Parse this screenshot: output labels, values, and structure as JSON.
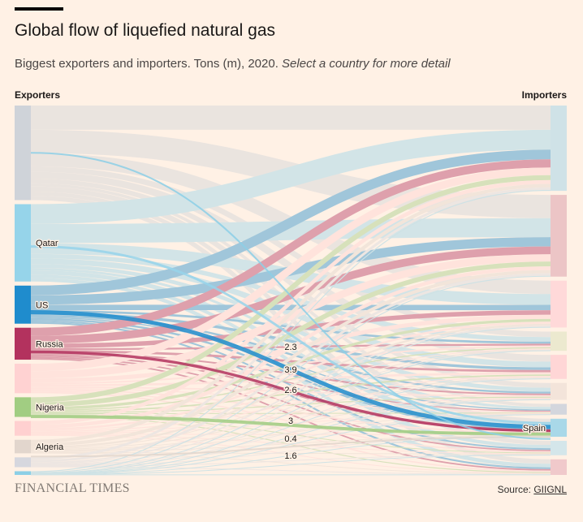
{
  "header": {
    "title": "Global flow of liquefied natural gas",
    "subtitle": "Biggest exporters and importers. Tons (m), 2020.",
    "subtitle_cta": "Select a country for more detail"
  },
  "columns": {
    "left": "Exporters",
    "right": "Importers"
  },
  "footer": {
    "brand": "FINANCIAL TIMES",
    "source_prefix": "Source: ",
    "source_link": "GIIGNL"
  },
  "chart_data": {
    "type": "sankey",
    "selected_importer": "Spain",
    "exporters": [
      {
        "name": "",
        "value": 77,
        "color": "#cfd3d9"
      },
      {
        "name": "Qatar",
        "value": 63,
        "color": "#96d4ea"
      },
      {
        "name": "US",
        "value": 31,
        "color": "#1f8ccd"
      },
      {
        "name": "Russia",
        "value": 26,
        "color": "#b3325e"
      },
      {
        "name": "",
        "value": 24,
        "color": "#ffd2d2"
      },
      {
        "name": "Nigeria",
        "value": 16,
        "color": "#a1cd82"
      },
      {
        "name": "",
        "value": 12,
        "color": "#ffd0d0"
      },
      {
        "name": "Algeria",
        "value": 11,
        "color": "#e2d6cd"
      },
      {
        "name": "",
        "value": 8,
        "color": "#d6d7de"
      },
      {
        "name": "",
        "value": 3,
        "color": "#8ccfe6"
      }
    ],
    "importers": [
      {
        "name": "",
        "value": 71,
        "color": "#cfe2e7"
      },
      {
        "name": "",
        "value": 68,
        "color": "#ecc5c6"
      },
      {
        "name": "",
        "value": 39,
        "color": "#ffd9d9"
      },
      {
        "name": "",
        "value": 16,
        "color": "#ece9cf"
      },
      {
        "name": "",
        "value": 20,
        "color": "#ffd6d6"
      },
      {
        "name": "",
        "value": 14,
        "color": "#f3e4da"
      },
      {
        "name": "",
        "value": 9,
        "color": "#d3d6dd"
      },
      {
        "name": "Spain",
        "value": 15,
        "color": "#a9d8e8"
      },
      {
        "name": "",
        "value": 12,
        "color": "#d4e6ea"
      },
      {
        "name": "",
        "value": 13,
        "color": "#f0c9cb"
      }
    ],
    "highlighted_flows": [
      {
        "from": "Qatar",
        "to": "Spain",
        "value": 2.3,
        "color": "#96d4ea"
      },
      {
        "from": "US",
        "to": "Spain",
        "value": 3.9,
        "color": "#1f8ccd"
      },
      {
        "from": "Russia",
        "to": "Spain",
        "value": 2.6,
        "color": "#b3325e"
      },
      {
        "from": "Nigeria",
        "to": "Spain",
        "value": 3,
        "color": "#a1cd82"
      },
      {
        "from": "Algeria",
        "to": "Spain",
        "value": 0.4,
        "color": "#e2d6cd"
      },
      {
        "from": "",
        "to": "Spain",
        "value": 1.6,
        "color": "#8ccfe6"
      }
    ],
    "flow_labels": [
      "2.3",
      "3.9",
      "2.6",
      "3",
      "0.4",
      "1.6"
    ]
  }
}
